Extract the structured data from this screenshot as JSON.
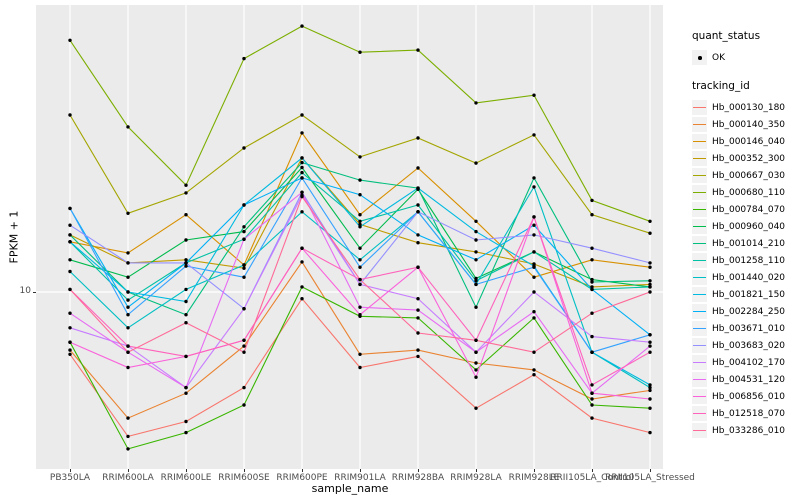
{
  "chart_data": {
    "type": "line",
    "title": "",
    "xlabel": "sample_name",
    "ylabel": "FPKM + 1",
    "y_scale": "log10",
    "y_ticks": [
      "10"
    ],
    "ylim_approx": [
      2.6,
      90
    ],
    "grid": "vertical-per-category-and-y10",
    "panel_bg": "#EBEBEB",
    "grid_color": "#FFFFFF",
    "point_color": "#000000",
    "categories": [
      "PB350LA",
      "RRIM600LA",
      "RRIM600LE",
      "RRIM600SE",
      "RRIM600PE",
      "RRIM901LA",
      "RRIM928BA",
      "RRIM928LA",
      "RRIM928LE",
      "RRII105LA_Control",
      "RRII105LA_Stressed"
    ],
    "legend": {
      "quant_status": {
        "title": "quant_status",
        "items": [
          {
            "label": "OK",
            "symbol": "point"
          }
        ]
      },
      "tracking_id": {
        "title": "tracking_id"
      }
    },
    "series": [
      {
        "name": "Hb_000130_180",
        "color": "#F8766D",
        "values": [
          6.2,
          3.3,
          3.7,
          4.8,
          9.5,
          5.6,
          6.1,
          4.1,
          5.3,
          3.8,
          3.4
        ]
      },
      {
        "name": "Hb_000140_350",
        "color": "#EA8331",
        "values": [
          6.4,
          3.8,
          4.6,
          6.6,
          12.6,
          6.2,
          6.4,
          5.8,
          5.5,
          4.4,
          4.7
        ]
      },
      {
        "name": "Hb_000146_040",
        "color": "#D89000",
        "values": [
          14.7,
          13.5,
          18.1,
          12.3,
          33.9,
          18.1,
          25.9,
          17.2,
          11.2,
          12.8,
          12.1
        ]
      },
      {
        "name": "Hb_000352_300",
        "color": "#C09B00",
        "values": [
          15.5,
          12.5,
          12.8,
          12.0,
          28.0,
          16.8,
          14.6,
          13.6,
          12.4,
          10.4,
          10.6
        ]
      },
      {
        "name": "Hb_000667_030",
        "color": "#A3A500",
        "values": [
          38.9,
          18.3,
          21.4,
          30.2,
          38.9,
          28.2,
          32.6,
          26.9,
          33.4,
          18.1,
          15.7
        ]
      },
      {
        "name": "Hb_000680_110",
        "color": "#7CAE00",
        "values": [
          69.0,
          35.5,
          22.7,
          60.0,
          77.0,
          63.0,
          64.0,
          42.7,
          45.3,
          20.2,
          17.2
        ]
      },
      {
        "name": "Hb_000784_070",
        "color": "#39B600",
        "values": [
          6.8,
          3.0,
          3.4,
          4.2,
          10.4,
          8.3,
          8.2,
          5.5,
          8.2,
          4.2,
          4.1
        ]
      },
      {
        "name": "Hb_000960_040",
        "color": "#00BB4E",
        "values": [
          12.8,
          11.2,
          14.9,
          15.9,
          26.0,
          14.0,
          22.0,
          11.1,
          13.6,
          11.0,
          10.4
        ]
      },
      {
        "name": "Hb_001014_210",
        "color": "#00BF7D",
        "values": [
          15.5,
          10.0,
          8.4,
          16.5,
          27.0,
          23.6,
          22.2,
          8.9,
          24.0,
          10.8,
          10.9
        ]
      },
      {
        "name": "Hb_001258_110",
        "color": "#00C1A3",
        "values": [
          14.7,
          9.4,
          12.5,
          15.0,
          25.0,
          17.2,
          19.5,
          10.9,
          13.6,
          10.2,
          10.4
        ]
      },
      {
        "name": "Hb_001440_020",
        "color": "#00BFC4",
        "values": [
          11.7,
          7.6,
          10.2,
          12.3,
          18.5,
          12.8,
          18.5,
          10.6,
          22.4,
          6.3,
          4.8
        ]
      },
      {
        "name": "Hb_001821_150",
        "color": "#00BAE0",
        "values": [
          14.7,
          10.0,
          9.3,
          19.5,
          28.0,
          16.5,
          22.2,
          15.9,
          12.2,
          6.3,
          4.9
        ]
      },
      {
        "name": "Hb_002284_250",
        "color": "#00B0F6",
        "values": [
          19.0,
          8.9,
          12.5,
          19.5,
          24.0,
          21.1,
          15.5,
          12.8,
          16.7,
          10.2,
          7.2
        ]
      },
      {
        "name": "Hb_003671_010",
        "color": "#35A2FF",
        "values": [
          19.0,
          8.4,
          12.2,
          11.2,
          24.0,
          12.1,
          18.5,
          10.6,
          12.1,
          6.3,
          7.2
        ]
      },
      {
        "name": "Hb_003683_020",
        "color": "#9590FF",
        "values": [
          16.7,
          12.5,
          12.5,
          8.8,
          21.5,
          10.6,
          18.5,
          14.9,
          15.5,
          14.0,
          12.5
        ]
      },
      {
        "name": "Hb_004102_170",
        "color": "#C77CFF",
        "values": [
          7.6,
          6.6,
          4.8,
          8.8,
          21.0,
          10.6,
          9.5,
          6.3,
          10.0,
          7.1,
          6.8
        ]
      },
      {
        "name": "Hb_004531_120",
        "color": "#E76BF3",
        "values": [
          8.5,
          6.3,
          4.8,
          15.0,
          21.5,
          8.9,
          8.7,
          6.3,
          8.6,
          4.6,
          6.6
        ]
      },
      {
        "name": "Hb_006856_010",
        "color": "#FA62DB",
        "values": [
          6.8,
          5.6,
          6.1,
          6.9,
          14.0,
          8.4,
          12.1,
          5.2,
          17.8,
          4.6,
          4.4
        ]
      },
      {
        "name": "Hb_012518_070",
        "color": "#FF62BC",
        "values": [
          10.2,
          6.6,
          6.1,
          6.9,
          14.0,
          11.0,
          12.1,
          6.9,
          17.8,
          4.9,
          6.3
        ]
      },
      {
        "name": "Hb_033286_010",
        "color": "#FF6A98",
        "values": [
          10.2,
          6.3,
          7.9,
          6.3,
          20.8,
          11.0,
          7.3,
          6.9,
          6.3,
          8.5,
          10.0
        ]
      }
    ]
  }
}
